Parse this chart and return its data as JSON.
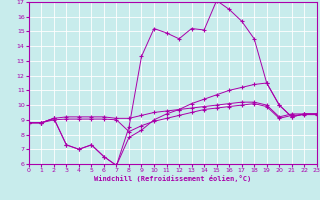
{
  "xlabel": "Windchill (Refroidissement éolien,°C)",
  "xlim": [
    0,
    23
  ],
  "ylim": [
    6,
    17
  ],
  "xticks": [
    0,
    1,
    2,
    3,
    4,
    5,
    6,
    7,
    8,
    9,
    10,
    11,
    12,
    13,
    14,
    15,
    16,
    17,
    18,
    19,
    20,
    21,
    22,
    23
  ],
  "yticks": [
    6,
    7,
    8,
    9,
    10,
    11,
    12,
    13,
    14,
    15,
    16,
    17
  ],
  "bg_color": "#c8ecec",
  "line_color": "#aa00aa",
  "grid_color": "#ffffff",
  "line1_y": [
    8.8,
    8.8,
    9.1,
    9.2,
    9.2,
    9.2,
    9.2,
    9.1,
    9.1,
    9.3,
    9.5,
    9.6,
    9.7,
    9.8,
    9.9,
    10.0,
    10.1,
    10.2,
    10.2,
    10.0,
    9.2,
    9.4,
    9.4,
    9.4
  ],
  "line2_y": [
    8.8,
    8.8,
    9.0,
    9.05,
    9.05,
    9.05,
    9.05,
    9.0,
    8.2,
    8.6,
    8.9,
    9.1,
    9.3,
    9.5,
    9.7,
    9.8,
    9.9,
    10.0,
    10.1,
    9.9,
    9.1,
    9.3,
    9.35,
    9.35
  ],
  "line3_y": [
    8.8,
    8.8,
    9.1,
    7.3,
    7.0,
    7.3,
    6.5,
    5.9,
    8.5,
    13.3,
    15.2,
    14.9,
    14.5,
    15.2,
    15.1,
    17.1,
    16.5,
    15.7,
    14.5,
    11.5,
    10.0,
    9.2,
    9.4,
    9.4
  ],
  "line4_y": [
    8.8,
    8.8,
    9.1,
    7.3,
    7.0,
    7.3,
    6.5,
    5.9,
    7.8,
    8.3,
    9.0,
    9.4,
    9.7,
    10.1,
    10.4,
    10.7,
    11.0,
    11.2,
    11.4,
    11.5,
    10.0,
    9.2,
    9.4,
    9.4
  ]
}
